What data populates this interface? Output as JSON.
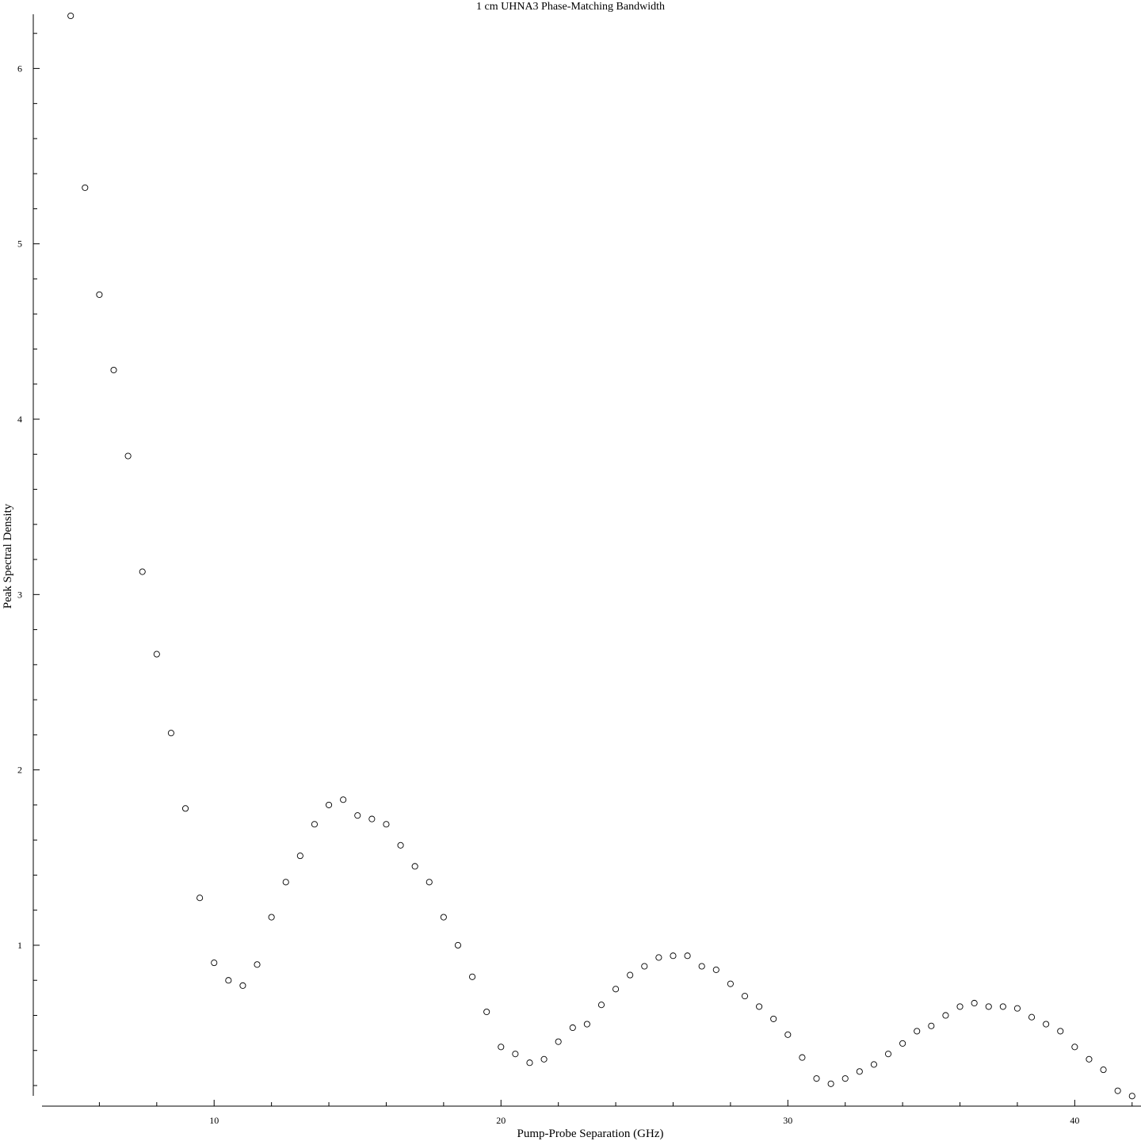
{
  "chart_data": {
    "type": "scatter",
    "title": "1 cm UHNA3 Phase-Matching Bandwidth",
    "xlabel": "Pump-Probe Separation (GHz)",
    "ylabel": "Peak Spectral Density",
    "xlim": [
      4.0,
      42.2
    ],
    "ylim": [
      0.2,
      6.3
    ],
    "xticks": [
      10,
      20,
      30,
      40
    ],
    "xtick_labels": [
      "10",
      "20",
      "30",
      "40"
    ],
    "yticks": [
      1,
      2,
      3,
      4,
      5,
      6
    ],
    "ytick_labels": [
      "1",
      "2",
      "3",
      "4",
      "5",
      "6"
    ],
    "grid": false,
    "marker": "open-circle",
    "marker_color": "#000000",
    "series": [
      {
        "x": [
          5.0,
          5.5,
          6.0,
          6.5,
          7.0,
          7.5,
          8.0,
          8.5,
          9.0,
          9.5,
          10.0,
          10.5,
          11.0,
          11.5,
          12.0,
          12.5,
          13.0,
          13.5,
          14.0,
          14.5,
          15.0,
          15.5,
          16.0,
          16.5,
          17.0,
          17.5,
          18.0,
          18.5,
          19.0,
          19.5,
          20.0,
          20.5,
          21.0,
          21.5,
          22.0,
          22.5,
          23.0,
          23.5,
          24.0,
          24.5,
          25.0,
          25.5,
          26.0,
          26.5,
          27.0,
          27.5,
          28.0,
          28.5,
          29.0,
          29.5,
          30.0,
          30.5,
          31.0,
          31.5,
          32.0,
          32.5,
          33.0,
          33.5,
          34.0,
          34.5,
          35.0,
          35.5,
          36.0,
          36.5,
          37.0,
          37.5,
          38.0,
          38.5,
          39.0,
          39.5,
          40.0,
          40.5,
          41.0,
          41.5,
          42.0
        ],
        "y": [
          6.3,
          5.32,
          4.71,
          4.28,
          3.79,
          3.13,
          2.66,
          2.21,
          1.78,
          1.27,
          0.9,
          0.8,
          0.77,
          0.89,
          1.16,
          1.36,
          1.51,
          1.69,
          1.8,
          1.83,
          1.74,
          1.72,
          1.69,
          1.57,
          1.45,
          1.36,
          1.16,
          1.0,
          0.82,
          0.62,
          0.42,
          0.38,
          0.33,
          0.35,
          0.45,
          0.53,
          0.55,
          0.66,
          0.75,
          0.83,
          0.88,
          0.93,
          0.94,
          0.94,
          0.88,
          0.86,
          0.78,
          0.71,
          0.65,
          0.58,
          0.49,
          0.36,
          0.24,
          0.21,
          0.24,
          0.28,
          0.32,
          0.38,
          0.44,
          0.51,
          0.54,
          0.6,
          0.65,
          0.67,
          0.65,
          0.65,
          0.64,
          0.59,
          0.55,
          0.51,
          0.42,
          0.35,
          0.29,
          0.17,
          0.14
        ]
      }
    ]
  }
}
